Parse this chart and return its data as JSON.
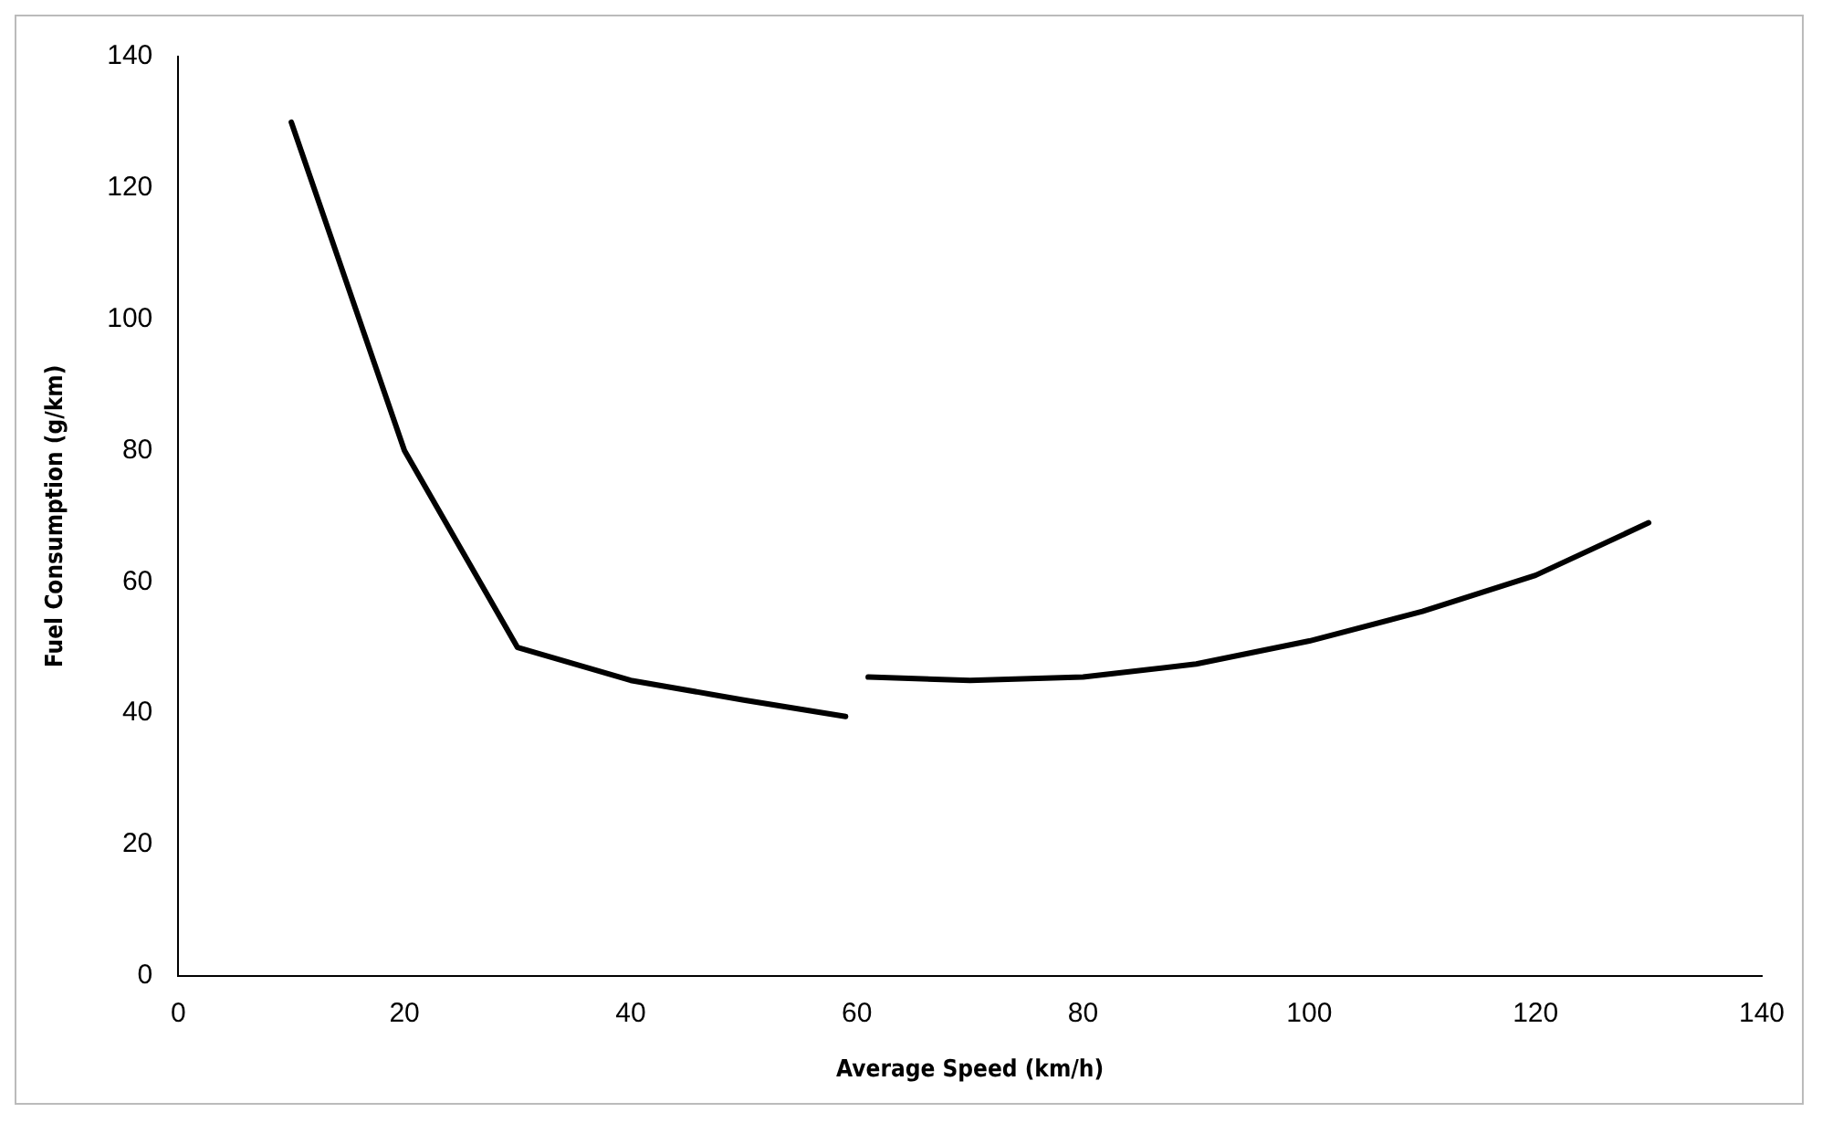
{
  "chart_data": {
    "type": "line",
    "xlabel": "Average Speed (km/h)",
    "ylabel": "Fuel Consumption (g/km)",
    "series": [
      {
        "color": "#000000",
        "x": [
          10,
          20,
          30,
          40,
          50,
          59
        ],
        "values": [
          130,
          80,
          50,
          45,
          42,
          39.5
        ]
      },
      {
        "color": "#000000",
        "x": [
          61,
          70,
          80,
          90,
          100,
          110,
          120,
          130
        ],
        "values": [
          45.5,
          45,
          45.5,
          47.5,
          51,
          55.5,
          61,
          69
        ]
      }
    ],
    "xlim": [
      0,
      140
    ],
    "xticks": [
      0,
      20,
      40,
      60,
      80,
      100,
      120,
      140
    ],
    "ylim": [
      0,
      140
    ],
    "yticks": [
      0,
      20,
      40,
      60,
      80,
      100,
      120,
      140
    ],
    "grid": false,
    "legend": false,
    "marker": "none",
    "line_style": "solid"
  }
}
